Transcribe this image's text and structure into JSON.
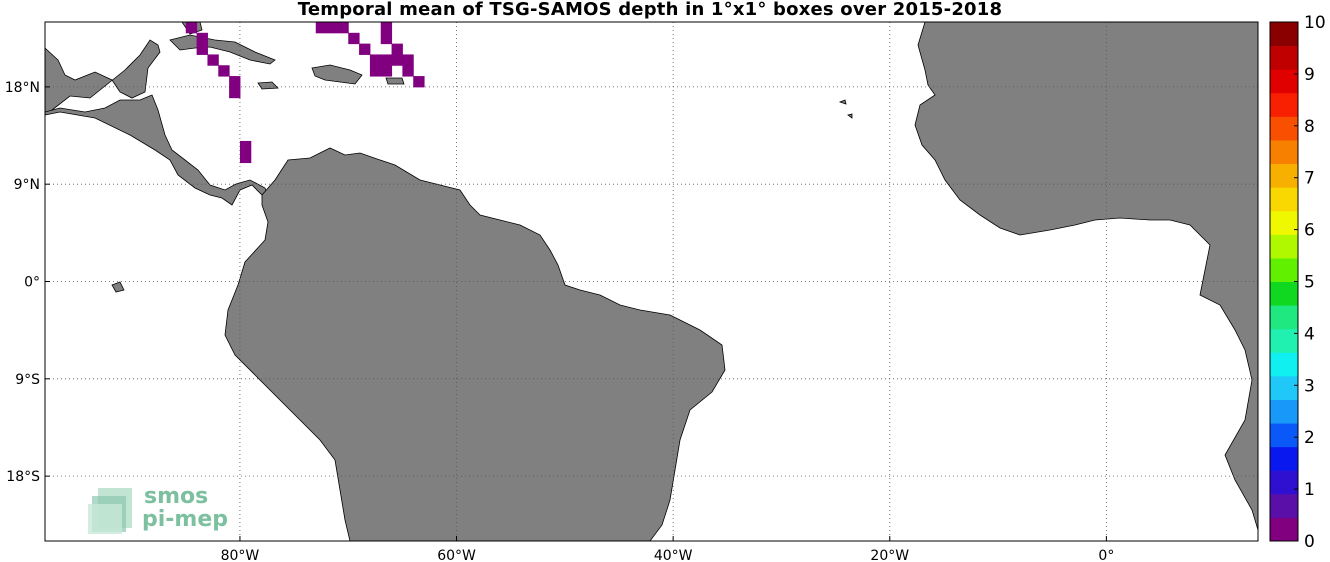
{
  "title": "Temporal mean of TSG-SAMOS depth in 1°x1° boxes over 2015-2018",
  "map": {
    "lon_range": [
      -98,
      14
    ],
    "lat_range": [
      -24,
      24
    ],
    "lon_ticks": [
      {
        "value": -80,
        "label": "80°W"
      },
      {
        "value": -60,
        "label": "60°W"
      },
      {
        "value": -40,
        "label": "40°W"
      },
      {
        "value": -20,
        "label": "20°W"
      },
      {
        "value": 0,
        "label": "0°"
      }
    ],
    "lat_ticks": [
      {
        "value": 18,
        "label": "18°N"
      },
      {
        "value": 9,
        "label": "9°N"
      },
      {
        "value": 0,
        "label": "0°"
      },
      {
        "value": -9,
        "label": "9°S"
      },
      {
        "value": -18,
        "label": "18°S"
      }
    ],
    "land_color": "#808080",
    "grid": true
  },
  "colorbar": {
    "min": 0,
    "max": 10,
    "ticks": [
      "0",
      "1",
      "2",
      "3",
      "4",
      "5",
      "6",
      "7",
      "8",
      "9",
      "10"
    ],
    "colors": [
      "#800080",
      "#5a10a8",
      "#3010d0",
      "#0a18f0",
      "#0a58f8",
      "#1898f8",
      "#20c8f8",
      "#10f0f0",
      "#20f0b0",
      "#20e880",
      "#10d820",
      "#60f000",
      "#b0f800",
      "#f0f800",
      "#f8d800",
      "#f8b000",
      "#f88000",
      "#f85000",
      "#f82000",
      "#e00000",
      "#c00000",
      "#8a0000"
    ]
  },
  "data_cells": {
    "value": 0,
    "color": "#800080",
    "boxes": [
      [
        -85,
        23
      ],
      [
        -84,
        22
      ],
      [
        -84,
        21
      ],
      [
        -83,
        20
      ],
      [
        -82,
        19
      ],
      [
        -81,
        18
      ],
      [
        -81,
        17
      ],
      [
        -80,
        12
      ],
      [
        -80,
        11
      ],
      [
        -73,
        23
      ],
      [
        -72,
        23
      ],
      [
        -71,
        23
      ],
      [
        -70,
        22
      ],
      [
        -69,
        21
      ],
      [
        -68,
        20
      ],
      [
        -67,
        19
      ],
      [
        -67,
        23
      ],
      [
        -67,
        22
      ],
      [
        -66,
        21
      ],
      [
        -66,
        20
      ],
      [
        -65,
        20
      ],
      [
        -65,
        19
      ],
      [
        -64,
        18
      ],
      [
        -67,
        20
      ],
      [
        -68,
        19
      ]
    ]
  },
  "logo": {
    "line1": "smos",
    "line2": "pi-mep"
  }
}
